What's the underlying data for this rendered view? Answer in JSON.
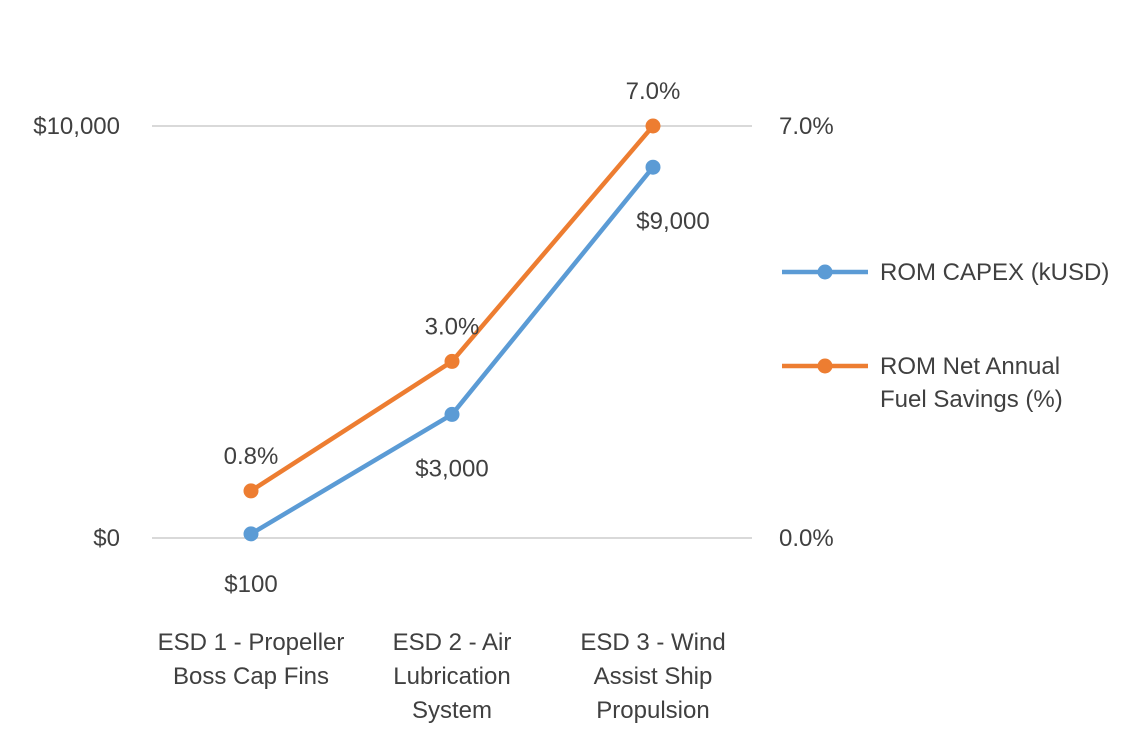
{
  "chart_data": {
    "type": "line",
    "title": "",
    "categories": [
      [
        "ESD 1 - Propeller",
        "Boss Cap Fins"
      ],
      [
        "ESD 2 - Air",
        "Lubrication",
        "System"
      ],
      [
        "ESD 3 - Wind",
        "Assist Ship",
        "Propulsion"
      ]
    ],
    "y_left": {
      "ticks": [
        "$0",
        "$10,000"
      ],
      "range": [
        0,
        10000
      ]
    },
    "y_right": {
      "ticks": [
        "0.0%",
        "7.0%"
      ],
      "range": [
        0,
        7
      ]
    },
    "series": [
      {
        "name": "ROM CAPEX (kUSD)",
        "axis": "left",
        "color": "#5b9bd5",
        "values": [
          100,
          3000,
          9000
        ],
        "labels": [
          "$100",
          "$3,000",
          "$9,000"
        ]
      },
      {
        "name": "ROM Net Annual Fuel Savings (%)",
        "legend_lines": [
          "ROM Net Annual",
          "Fuel Savings (%)"
        ],
        "axis": "right",
        "color": "#ed7d31",
        "values": [
          0.8,
          3.0,
          7.0
        ],
        "labels": [
          "0.8%",
          "3.0%",
          "7.0%"
        ]
      }
    ],
    "grid": true,
    "legend_position": "right"
  }
}
